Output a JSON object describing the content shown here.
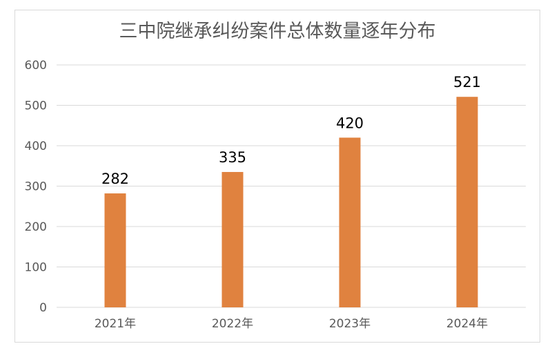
{
  "chart_data": {
    "type": "bar",
    "title": "三中院继承纠纷案件总体数量逐年分布",
    "categories": [
      "2021年",
      "2022年",
      "2023年",
      "2024年"
    ],
    "values": [
      282,
      335,
      420,
      521
    ],
    "ylim": [
      0,
      600
    ],
    "yticks": [
      0,
      100,
      200,
      300,
      400,
      500,
      600
    ],
    "ytick_labels": [
      "0",
      "100",
      "200",
      "300",
      "400",
      "500",
      "600"
    ],
    "data_labels": [
      "282",
      "335",
      "420",
      "521"
    ],
    "grid": true,
    "legend": "none",
    "bar_color": "#E0823F",
    "grid_color": "#d9d9d9"
  }
}
